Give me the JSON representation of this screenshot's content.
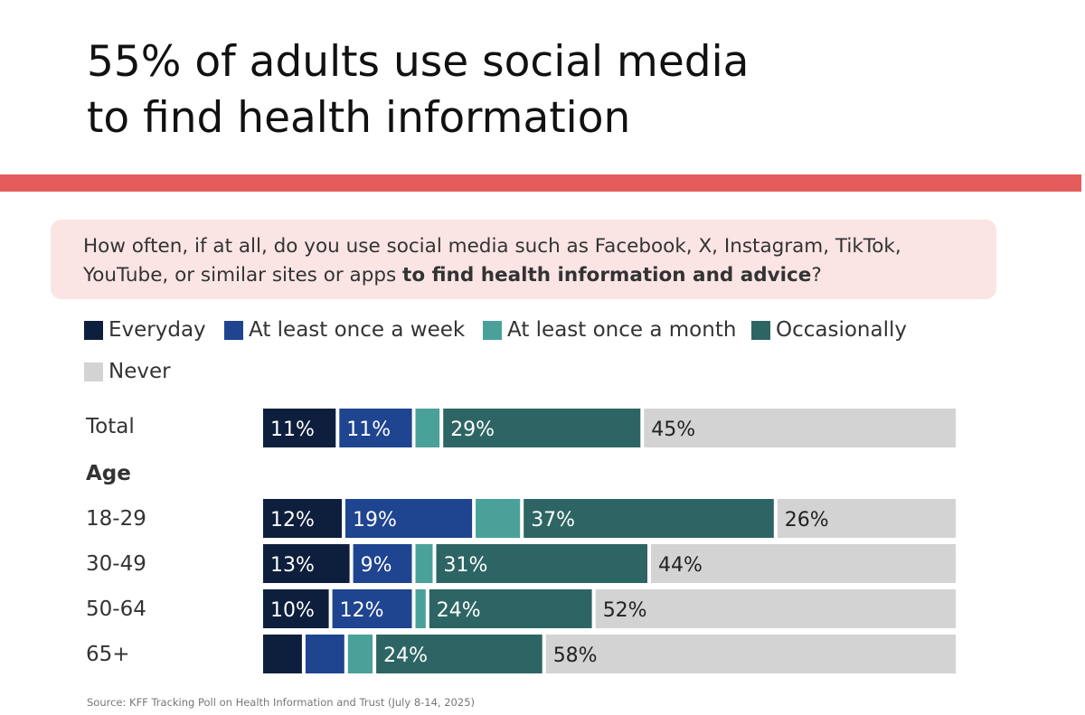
{
  "title_lines": [
    "55% of adults use social media",
    "to find health information"
  ],
  "question": {
    "prefix": "How often, if at all, do you use social media such as Facebook, X, Instagram, TikTok, YouTube, or similar sites or apps ",
    "bold": "to find health information and advice",
    "suffix": "?"
  },
  "group_label": "Age",
  "source": "Source: KFF Tracking Poll on Health Information and Trust (July 8-14, 2025)",
  "colors": {
    "accent_rule": "#e45b5b",
    "question_bg": "#fbe4e4",
    "everyday": "#0d1f3c",
    "week": "#1f4490",
    "month": "#49a19a",
    "occasionally": "#2d6564",
    "never": "#d3d3d3"
  },
  "chart_data": {
    "type": "bar",
    "orientation": "horizontal",
    "stacked": true,
    "categories": [
      "Total",
      "18-29",
      "30-49",
      "50-64",
      "65+"
    ],
    "series": [
      {
        "name": "Everyday",
        "color": "#0d1f3c",
        "values": [
          11,
          12,
          13,
          10,
          6
        ]
      },
      {
        "name": "At least once a week",
        "color": "#1f4490",
        "values": [
          11,
          19,
          9,
          12,
          6
        ]
      },
      {
        "name": "At least once a month",
        "color": "#49a19a",
        "values": [
          4,
          7,
          3,
          2,
          4
        ]
      },
      {
        "name": "Occasionally",
        "color": "#2d6564",
        "values": [
          29,
          37,
          31,
          24,
          24
        ]
      },
      {
        "name": "Never",
        "color": "#d3d3d3",
        "values": [
          45,
          26,
          44,
          52,
          58
        ]
      }
    ],
    "data_labels": [
      [
        "11%",
        "11%",
        "",
        "29%",
        "45%"
      ],
      [
        "12%",
        "19%",
        "",
        "37%",
        "26%"
      ],
      [
        "13%",
        "9%",
        "",
        "31%",
        "44%"
      ],
      [
        "10%",
        "12%",
        "",
        "24%",
        "52%"
      ],
      [
        "",
        "",
        "",
        "24%",
        "58%"
      ]
    ],
    "xlim": [
      0,
      100
    ],
    "legend_position": "top"
  }
}
